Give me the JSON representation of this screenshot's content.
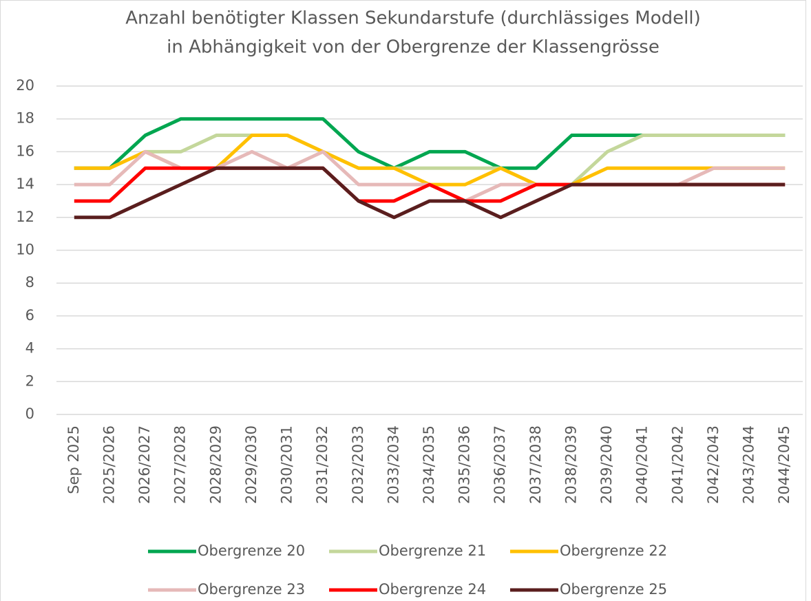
{
  "chart_data": {
    "type": "line",
    "title": [
      "Anzahl benötigter Klassen Sekundarstufe (durchlässiges Modell)",
      "in Abhängigkeit von der Obergrenze der Klassengrösse"
    ],
    "categories": [
      "Sep 2025",
      "2025/2026",
      "2026/2027",
      "2027/2028",
      "2028/2029",
      "2029/2030",
      "2030/2031",
      "2031/2032",
      "2032/2033",
      "2033/2034",
      "2034/2035",
      "2035/2036",
      "2036/2037",
      "2037/2038",
      "2038/2039",
      "2039/2040",
      "2040/2041",
      "2041/2042",
      "2042/2043",
      "2043/2044",
      "2044/2045"
    ],
    "series": [
      {
        "name": "Obergrenze 20",
        "color": "#00a650",
        "values": [
          15,
          15,
          17,
          18,
          18,
          18,
          18,
          18,
          16,
          15,
          16,
          16,
          15,
          15,
          17,
          17,
          17,
          17,
          17,
          17,
          17
        ]
      },
      {
        "name": "Obergrenze 21",
        "color": "#c4d79b",
        "values": [
          15,
          15,
          16,
          16,
          17,
          17,
          17,
          16,
          15,
          15,
          15,
          15,
          15,
          14,
          14,
          16,
          17,
          17,
          17,
          17,
          17
        ]
      },
      {
        "name": "Obergrenze 22",
        "color": "#ffc000",
        "values": [
          15,
          15,
          16,
          15,
          15,
          17,
          17,
          16,
          15,
          15,
          14,
          14,
          15,
          14,
          14,
          15,
          15,
          15,
          15,
          15,
          15
        ]
      },
      {
        "name": "Obergrenze 23",
        "color": "#e6b9b8",
        "values": [
          14,
          14,
          16,
          15,
          15,
          16,
          15,
          16,
          14,
          14,
          14,
          13,
          14,
          14,
          14,
          14,
          14,
          14,
          15,
          15,
          15
        ]
      },
      {
        "name": "Obergrenze 24",
        "color": "#ff0000",
        "values": [
          13,
          13,
          15,
          15,
          15,
          15,
          15,
          15,
          13,
          13,
          14,
          13,
          13,
          14,
          14,
          14,
          14,
          14,
          14,
          14,
          14
        ]
      },
      {
        "name": "Obergrenze 25",
        "color": "#5a1e1e",
        "values": [
          12,
          12,
          13,
          14,
          15,
          15,
          15,
          15,
          13,
          12,
          13,
          13,
          12,
          13,
          14,
          14,
          14,
          14,
          14,
          14,
          14
        ]
      }
    ],
    "ylim": [
      0,
      20
    ],
    "yticks": [
      0,
      2,
      4,
      6,
      8,
      10,
      12,
      14,
      16,
      18,
      20
    ],
    "grid": true
  }
}
